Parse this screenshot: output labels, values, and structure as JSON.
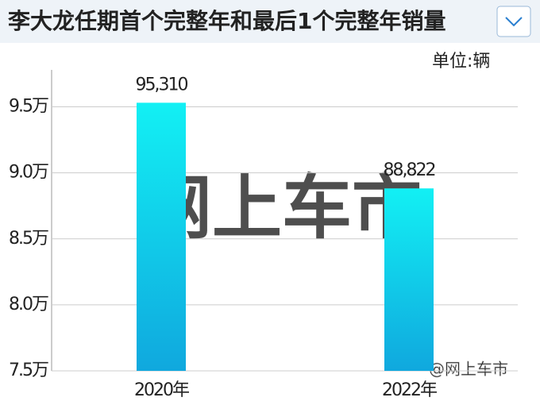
{
  "chart_data": {
    "type": "bar",
    "title": "李大龙任期首个完整年和最后1个完整年销量",
    "unit": "单位:辆",
    "categories": [
      "2020年",
      "2022年"
    ],
    "values": [
      95310,
      88822
    ],
    "value_labels": [
      "95,310",
      "88,822"
    ],
    "color": [
      "#12f0f4",
      "#10a8de"
    ],
    "ylim": [
      75000,
      97800
    ],
    "yticks": [
      {
        "value": 75000,
        "label": "7.5万"
      },
      {
        "value": 80000,
        "label": "8.0万"
      },
      {
        "value": 85000,
        "label": "8.5万"
      },
      {
        "value": 90000,
        "label": "9.0万"
      },
      {
        "value": 95000,
        "label": "9.5万"
      }
    ],
    "grid": true,
    "watermark": "网上车市",
    "credit": "@网上车市"
  }
}
